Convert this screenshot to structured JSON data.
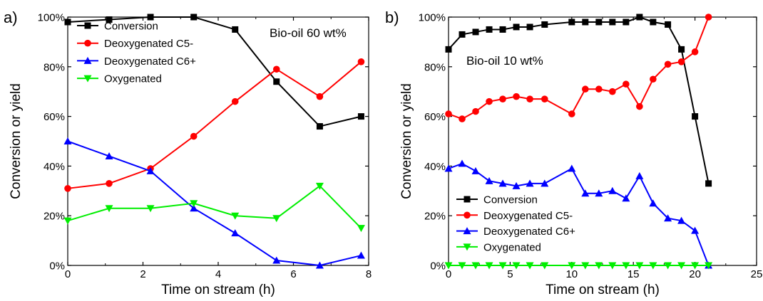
{
  "chart_data": [
    {
      "type": "line",
      "panel_label": "a)",
      "annotation": "Bio-oil 60 wt%",
      "xlabel": "Time on stream (h)",
      "ylabel": "Conversion or yield",
      "xlim": [
        0,
        8
      ],
      "ylim": [
        0,
        100
      ],
      "x_ticks": [
        0,
        2,
        4,
        6,
        8
      ],
      "x_tick_labels": [
        "0",
        "2",
        "4",
        "6",
        "8"
      ],
      "y_ticks": [
        0,
        20,
        40,
        60,
        80,
        100
      ],
      "y_tick_labels": [
        "0%",
        "20%",
        "40%",
        "60%",
        "80%",
        "100%"
      ],
      "legend_position": "upper-left",
      "series": [
        {
          "name": "Conversion",
          "color": "#000000",
          "marker": "square",
          "x": [
            0,
            1.1,
            2.2,
            3.35,
            4.45,
            5.55,
            6.7,
            7.8
          ],
          "y": [
            98,
            99,
            100,
            100,
            95,
            74,
            56,
            60
          ]
        },
        {
          "name": "Deoxygenated C5-",
          "color": "#ff0000",
          "marker": "circle",
          "x": [
            0,
            1.1,
            2.2,
            3.35,
            4.45,
            5.55,
            6.7,
            7.8
          ],
          "y": [
            31,
            33,
            39,
            52,
            66,
            79,
            68,
            82
          ]
        },
        {
          "name": "Deoxygenated C6+",
          "color": "#0000ff",
          "marker": "triangle-up",
          "x": [
            0,
            1.1,
            2.2,
            3.35,
            4.45,
            5.55,
            6.7,
            7.8
          ],
          "y": [
            50,
            44,
            38,
            23,
            13,
            2,
            0,
            4
          ]
        },
        {
          "name": "Oxygenated",
          "color": "#00ee00",
          "marker": "triangle-down",
          "x": [
            0,
            1.1,
            2.2,
            3.35,
            4.45,
            5.55,
            6.7,
            7.8
          ],
          "y": [
            18,
            23,
            23,
            25,
            20,
            19,
            32,
            15
          ]
        }
      ]
    },
    {
      "type": "line",
      "panel_label": "b)",
      "annotation": "Bio-oil 10 wt%",
      "xlabel": "Time on stream (h)",
      "ylabel": "Conversion or yield",
      "xlim": [
        0,
        25
      ],
      "ylim": [
        0,
        100
      ],
      "x_ticks": [
        0,
        5,
        10,
        15,
        20,
        25
      ],
      "x_tick_labels": [
        "0",
        "5",
        "10",
        "15",
        "20",
        "25"
      ],
      "y_ticks": [
        0,
        20,
        40,
        60,
        80,
        100
      ],
      "y_tick_labels": [
        "0%",
        "20%",
        "40%",
        "60%",
        "80%",
        "100%"
      ],
      "legend_position": "lower-left",
      "series": [
        {
          "name": "Conversion",
          "color": "#000000",
          "marker": "square",
          "x": [
            0,
            1.1,
            2.2,
            3.3,
            4.4,
            5.5,
            6.6,
            7.8,
            10,
            11.1,
            12.2,
            13.3,
            14.4,
            15.5,
            16.6,
            17.8,
            18.9,
            20,
            21.1
          ],
          "y": [
            87,
            93,
            94,
            95,
            95,
            96,
            96,
            97,
            98,
            98,
            98,
            98,
            98,
            100,
            98,
            97,
            87,
            60,
            33
          ]
        },
        {
          "name": "Deoxygenated C5-",
          "color": "#ff0000",
          "marker": "circle",
          "x": [
            0,
            1.1,
            2.2,
            3.3,
            4.4,
            5.5,
            6.6,
            7.8,
            10,
            11.1,
            12.2,
            13.3,
            14.4,
            15.5,
            16.6,
            17.8,
            18.9,
            20,
            21.1
          ],
          "y": [
            61,
            59,
            62,
            66,
            67,
            68,
            67,
            67,
            61,
            71,
            71,
            70,
            73,
            64,
            75,
            81,
            82,
            86,
            100
          ]
        },
        {
          "name": "Deoxygenated C6+",
          "color": "#0000ff",
          "marker": "triangle-up",
          "x": [
            0,
            1.1,
            2.2,
            3.3,
            4.4,
            5.5,
            6.6,
            7.8,
            10,
            11.1,
            12.2,
            13.3,
            14.4,
            15.5,
            16.6,
            17.8,
            18.9,
            20,
            21.1
          ],
          "y": [
            39,
            41,
            38,
            34,
            33,
            32,
            33,
            33,
            39,
            29,
            29,
            30,
            27,
            36,
            25,
            19,
            18,
            14,
            0
          ]
        },
        {
          "name": "Oxygenated",
          "color": "#00ee00",
          "marker": "triangle-down",
          "x": [
            0,
            1.1,
            2.2,
            3.3,
            4.4,
            5.5,
            6.6,
            7.8,
            10,
            11.1,
            12.2,
            13.3,
            14.4,
            15.5,
            16.6,
            17.8,
            18.9,
            20,
            21.1
          ],
          "y": [
            0,
            0,
            0,
            0,
            0,
            0,
            0,
            0,
            0,
            0,
            0,
            0,
            0,
            0,
            0,
            0,
            0,
            0,
            0
          ]
        }
      ]
    }
  ]
}
